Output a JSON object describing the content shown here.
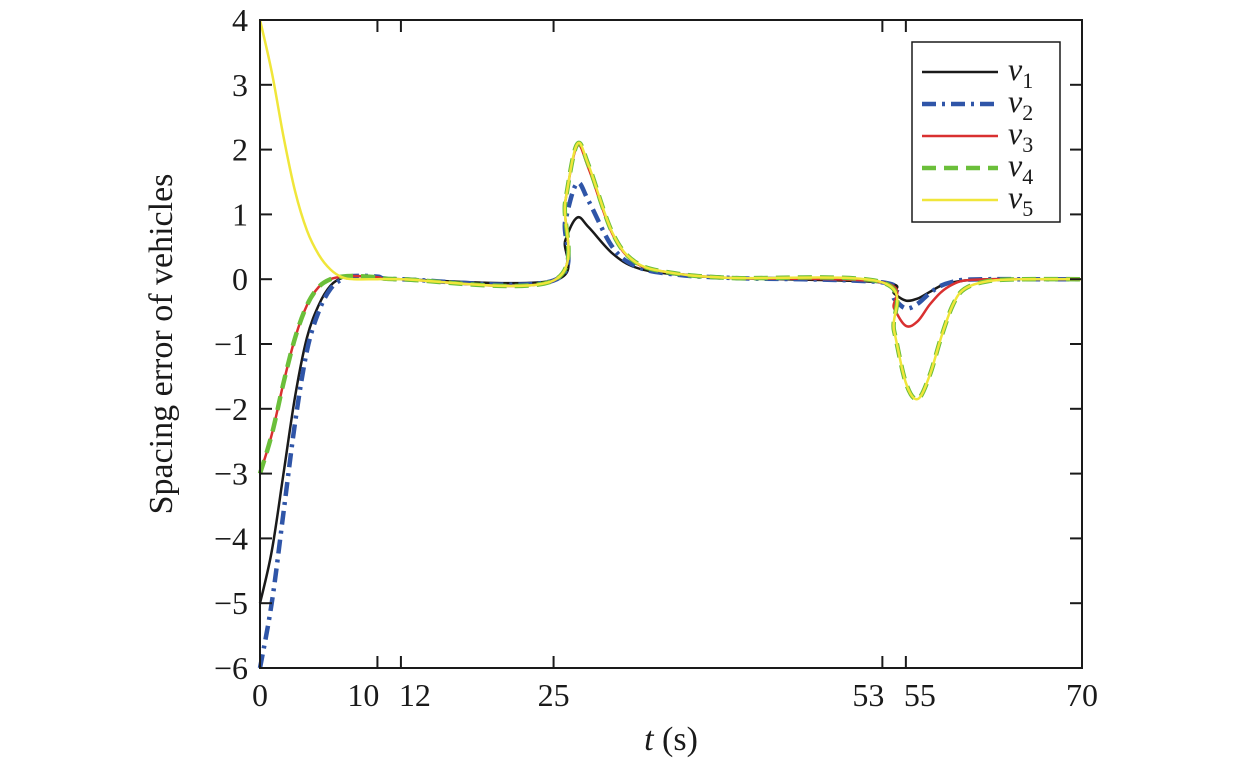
{
  "chart_data": {
    "type": "line",
    "title": "",
    "xlabel_var": "t",
    "xlabel_unit": " (s)",
    "ylabel": "Spacing error of vehicles",
    "xlim": [
      0,
      70
    ],
    "ylim": [
      -6,
      4
    ],
    "xticks": [
      0,
      10,
      12,
      25,
      53,
      55,
      70
    ],
    "xtick_labels": [
      "0",
      "10",
      "12",
      "25",
      "53",
      "55",
      "70"
    ],
    "yticks": [
      4,
      3,
      2,
      1,
      0,
      -1,
      -2,
      -3,
      -4,
      -5,
      -6
    ],
    "ytick_labels": [
      "4",
      "3",
      "2",
      "1",
      "0",
      "−1",
      "−2",
      "−3",
      "−4",
      "−5",
      "−6"
    ],
    "grid": false,
    "legend_position": "top-right",
    "series": [
      {
        "name": "v",
        "sub": "1",
        "color": "#1a1a1a",
        "style": "solid",
        "x": [
          0,
          1,
          2,
          3,
          4,
          5,
          6,
          7,
          8,
          10,
          12,
          25,
          26,
          27,
          28,
          30,
          32,
          35,
          40,
          53,
          54,
          55,
          56,
          57,
          58,
          59,
          60,
          62,
          65,
          70
        ],
        "y": [
          -5,
          -4.2,
          -3.0,
          -1.8,
          -0.9,
          -0.4,
          -0.1,
          0.02,
          0.05,
          0.03,
          0,
          -0.02,
          0.6,
          0.95,
          0.8,
          0.4,
          0.18,
          0.08,
          0.02,
          -0.05,
          -0.22,
          -0.33,
          -0.3,
          -0.2,
          -0.1,
          -0.05,
          -0.02,
          0,
          0,
          0
        ]
      },
      {
        "name": "v",
        "sub": "2",
        "color": "#2f55a8",
        "style": "dashdot",
        "x": [
          0,
          1,
          2,
          3,
          4,
          5,
          6,
          7,
          8,
          10,
          12,
          25,
          26,
          27,
          28,
          30,
          32,
          35,
          40,
          53,
          54,
          55,
          56,
          57,
          58,
          59,
          60,
          62,
          65,
          70
        ],
        "y": [
          -6,
          -5.0,
          -3.6,
          -2.2,
          -1.1,
          -0.5,
          -0.15,
          0.0,
          0.05,
          0.04,
          0,
          -0.02,
          0.9,
          1.48,
          1.2,
          0.5,
          0.2,
          0.08,
          0.02,
          -0.05,
          -0.3,
          -0.45,
          -0.38,
          -0.22,
          -0.1,
          -0.04,
          -0.01,
          0,
          0,
          0
        ]
      },
      {
        "name": "v",
        "sub": "3",
        "color": "#d93030",
        "style": "solid",
        "x": [
          0,
          1,
          2,
          3,
          4,
          5,
          6,
          7,
          8,
          10,
          12,
          25,
          26,
          27,
          28,
          30,
          32,
          35,
          40,
          53,
          54,
          55,
          56,
          57,
          58,
          59,
          60,
          62,
          65,
          70
        ],
        "y": [
          -3,
          -2.4,
          -1.6,
          -0.9,
          -0.4,
          -0.12,
          0.0,
          0.04,
          0.05,
          0.03,
          0,
          -0.02,
          1.2,
          2.05,
          1.7,
          0.7,
          0.25,
          0.1,
          0.02,
          -0.05,
          -0.45,
          -0.72,
          -0.65,
          -0.4,
          -0.2,
          -0.08,
          -0.02,
          0,
          0,
          0
        ]
      },
      {
        "name": "v",
        "sub": "4",
        "color": "#6bbf3a",
        "style": "dashed",
        "x": [
          0,
          1,
          2,
          3,
          4,
          5,
          6,
          7,
          8,
          10,
          12,
          25,
          26,
          27,
          28,
          30,
          32,
          35,
          40,
          53,
          54,
          55,
          56,
          57,
          58,
          59,
          60,
          62,
          65,
          70
        ],
        "y": [
          -3,
          -2.4,
          -1.6,
          -0.9,
          -0.4,
          -0.12,
          0.0,
          0.04,
          0.05,
          0.03,
          0,
          -0.02,
          1.2,
          2.08,
          1.75,
          0.72,
          0.26,
          0.1,
          0.02,
          -0.05,
          -0.8,
          -1.6,
          -1.85,
          -1.5,
          -0.9,
          -0.4,
          -0.15,
          -0.03,
          0,
          0
        ]
      },
      {
        "name": "v",
        "sub": "5",
        "color": "#f0e63a",
        "style": "solid",
        "x": [
          0,
          1,
          2,
          3,
          4,
          5,
          6,
          7,
          8,
          10,
          12,
          25,
          26,
          27,
          28,
          30,
          32,
          35,
          40,
          53,
          54,
          55,
          56,
          57,
          58,
          59,
          60,
          62,
          65,
          70
        ],
        "y": [
          4,
          3.2,
          2.2,
          1.35,
          0.75,
          0.38,
          0.15,
          0.03,
          0.0,
          0,
          0,
          -0.02,
          1.2,
          2.08,
          1.75,
          0.72,
          0.26,
          0.1,
          0.02,
          -0.05,
          -0.8,
          -1.6,
          -1.85,
          -1.5,
          -0.9,
          -0.4,
          -0.15,
          -0.03,
          0,
          0
        ]
      }
    ]
  }
}
